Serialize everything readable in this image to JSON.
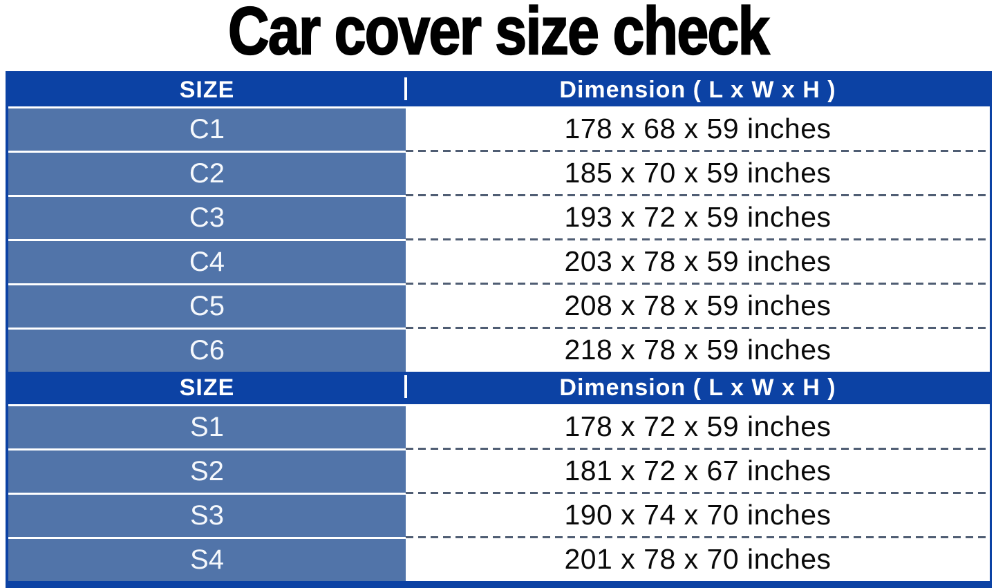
{
  "title": "Car cover size check",
  "colors": {
    "header_bg": "#0C42A4",
    "label_bg": "#5174A9",
    "header_text": "#FFFFFF",
    "label_text": "#F5F8FC",
    "value_text": "#0A0A0A",
    "dash": "#4F5D73",
    "table_border": "#0C42A4"
  },
  "table": {
    "sections": [
      {
        "header": {
          "size": "SIZE",
          "dimension": "Dimension ( L x W x H )"
        },
        "rows": [
          {
            "size": "C1",
            "dimension": "178 x 68 x 59 inches"
          },
          {
            "size": "C2",
            "dimension": "185 x 70 x 59 inches"
          },
          {
            "size": "C3",
            "dimension": "193 x 72 x 59 inches"
          },
          {
            "size": "C4",
            "dimension": "203 x 78 x 59 inches"
          },
          {
            "size": "C5",
            "dimension": "208 x 78 x 59 inches"
          },
          {
            "size": "C6",
            "dimension": "218 x 78 x 59 inches"
          }
        ]
      },
      {
        "header": {
          "size": "SIZE",
          "dimension": "Dimension ( L x W x H )"
        },
        "rows": [
          {
            "size": "S1",
            "dimension": "178 x 72 x 59 inches"
          },
          {
            "size": "S2",
            "dimension": "181 x 72 x 67 inches"
          },
          {
            "size": "S3",
            "dimension": "190 x 74 x 70 inches"
          },
          {
            "size": "S4",
            "dimension": "201 x 78 x 70 inches"
          }
        ]
      }
    ]
  },
  "chart_data": {
    "type": "table",
    "title": "Car cover size check",
    "columns": [
      "SIZE",
      "Dimension ( L x W x H )"
    ],
    "rows": [
      [
        "C1",
        "178 x 68 x 59 inches"
      ],
      [
        "C2",
        "185 x 70 x 59 inches"
      ],
      [
        "C3",
        "193 x 72 x 59 inches"
      ],
      [
        "C4",
        "203 x 78 x 59 inches"
      ],
      [
        "C5",
        "208 x 78 x 59 inches"
      ],
      [
        "C6",
        "218 x 78 x 59 inches"
      ],
      [
        "S1",
        "178 x 72 x 59 inches"
      ],
      [
        "S2",
        "181 x 72 x 67 inches"
      ],
      [
        "S3",
        "190 x 74 x 70 inches"
      ],
      [
        "S4",
        "201 x 78 x 70 inches"
      ]
    ]
  }
}
